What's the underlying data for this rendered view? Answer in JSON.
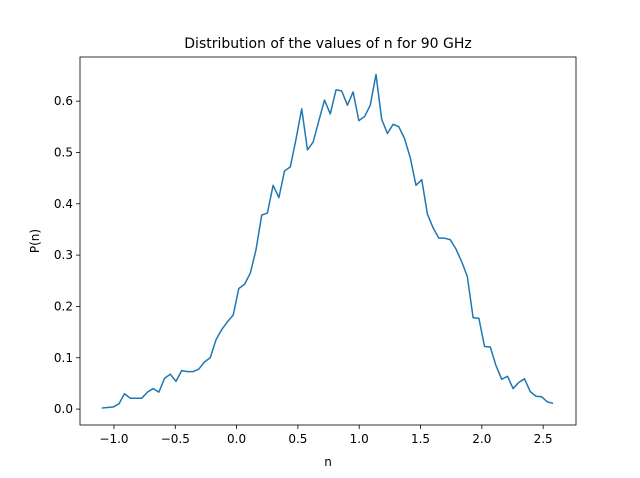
{
  "chart_data": {
    "type": "line",
    "title": "Distribution of the values of n for 90 GHz",
    "x_label": "n",
    "y_label": "P(n)",
    "color": "#1f77b4",
    "x": [
      -1.1,
      -1.053,
      -1.007,
      -0.96,
      -0.914,
      -0.867,
      -0.82,
      -0.774,
      -0.727,
      -0.681,
      -0.634,
      -0.587,
      -0.541,
      -0.494,
      -0.448,
      -0.401,
      -0.354,
      -0.308,
      -0.261,
      -0.215,
      -0.168,
      -0.121,
      -0.075,
      -0.028,
      0.018,
      0.065,
      0.112,
      0.158,
      0.205,
      0.251,
      0.298,
      0.345,
      0.391,
      0.438,
      0.484,
      0.531,
      0.578,
      0.624,
      0.671,
      0.717,
      0.764,
      0.811,
      0.857,
      0.904,
      0.95,
      0.997,
      1.044,
      1.09,
      1.137,
      1.183,
      1.23,
      1.277,
      1.323,
      1.37,
      1.416,
      1.463,
      1.51,
      1.556,
      1.603,
      1.649,
      1.696,
      1.743,
      1.789,
      1.836,
      1.882,
      1.929,
      1.976,
      2.022,
      2.069,
      2.115,
      2.162,
      2.209,
      2.255,
      2.302,
      2.348,
      2.395,
      2.442,
      2.488,
      2.535,
      2.581
    ],
    "values": [
      0.002,
      0.003,
      0.004,
      0.01,
      0.03,
      0.021,
      0.021,
      0.021,
      0.033,
      0.04,
      0.033,
      0.06,
      0.068,
      0.054,
      0.075,
      0.073,
      0.073,
      0.078,
      0.092,
      0.1,
      0.135,
      0.155,
      0.17,
      0.183,
      0.235,
      0.243,
      0.265,
      0.31,
      0.378,
      0.382,
      0.436,
      0.412,
      0.464,
      0.472,
      0.525,
      0.585,
      0.505,
      0.52,
      0.562,
      0.602,
      0.575,
      0.622,
      0.62,
      0.592,
      0.618,
      0.562,
      0.57,
      0.592,
      0.652,
      0.565,
      0.537,
      0.555,
      0.55,
      0.527,
      0.49,
      0.436,
      0.447,
      0.38,
      0.353,
      0.333,
      0.333,
      0.33,
      0.312,
      0.287,
      0.258,
      0.178,
      0.177,
      0.122,
      0.121,
      0.085,
      0.058,
      0.064,
      0.04,
      0.052,
      0.059,
      0.034,
      0.025,
      0.024,
      0.014,
      0.011
    ],
    "xlim": [
      -1.277,
      2.768
    ],
    "ylim": [
      -0.031,
      0.686
    ],
    "xticks": [
      {
        "value": -1.0,
        "label": "−1.0"
      },
      {
        "value": -0.5,
        "label": "−0.5"
      },
      {
        "value": 0,
        "label": "0.0"
      },
      0.5,
      {
        "value": 1,
        "label": "1.0"
      },
      1.5,
      {
        "value": 2,
        "label": "2.0"
      },
      2.5
    ],
    "yticks": [
      {
        "value": 0,
        "label": "0.0"
      },
      0.1,
      0.2,
      0.3,
      0.4,
      0.5,
      0.6
    ],
    "grid": false
  }
}
